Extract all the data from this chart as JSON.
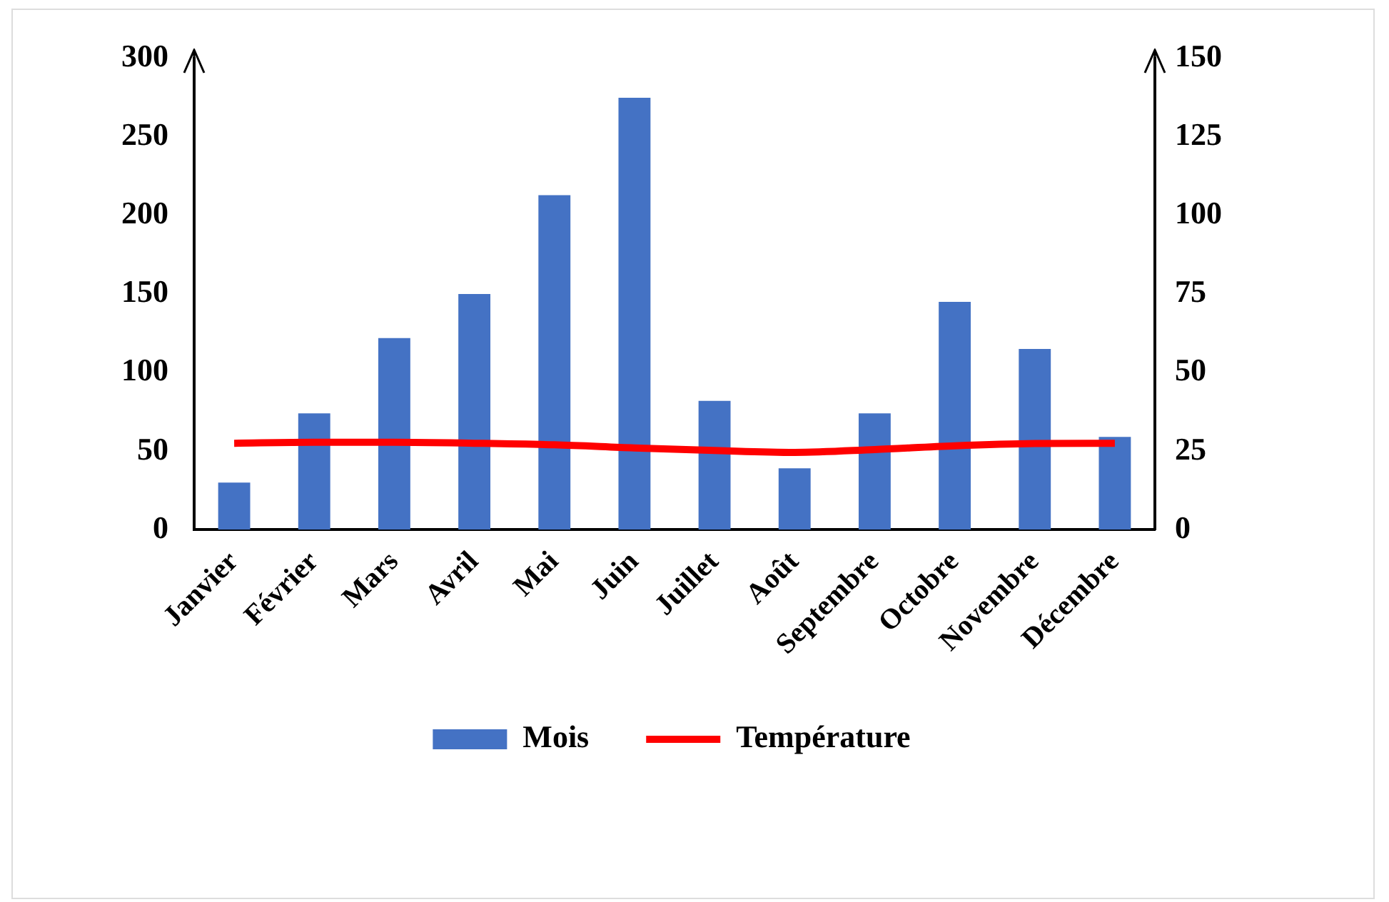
{
  "chart_data": {
    "type": "bar",
    "categories": [
      "Janvier",
      "Février",
      "Mars",
      "Avril",
      "Mai",
      "Juin",
      "Juillet",
      "Août",
      "Septembre",
      "Octobre",
      "Novembre",
      "Décembre"
    ],
    "series": [
      {
        "name": "Mois",
        "color": "#4472c4",
        "values": [
          30,
          74,
          122,
          150,
          213,
          275,
          82,
          39,
          74,
          145,
          115,
          59
        ]
      },
      {
        "name": "Température",
        "type": "line",
        "axis": "y2",
        "color": "#ff0000",
        "values": [
          27.5,
          27.8,
          27.8,
          27.5,
          27,
          26,
          25.2,
          24.6,
          25.5,
          26.7,
          27.4,
          27.5
        ]
      }
    ],
    "ylim": [
      0,
      300
    ],
    "yticks": [
      0,
      50,
      100,
      150,
      200,
      250,
      300
    ],
    "y2lim": [
      0,
      150
    ],
    "y2ticks": [
      0,
      25,
      50,
      75,
      100,
      125,
      150
    ],
    "grid": false,
    "legend": "bottom",
    "marker": "none"
  }
}
